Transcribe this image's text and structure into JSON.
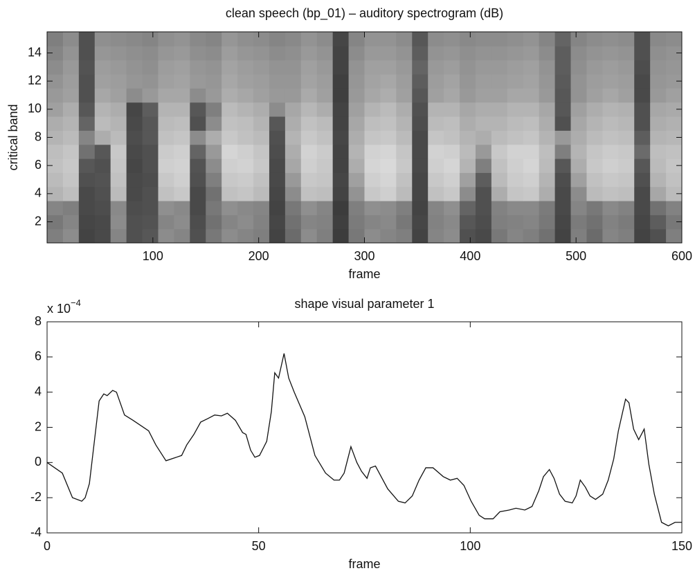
{
  "chart_data": [
    {
      "type": "heatmap",
      "title": "clean speech (bp_01) – auditory spectrogram (dB)",
      "x_label": "frame",
      "y_label": "critical band",
      "x": [
        7.5,
        22.5,
        37.5,
        52.5,
        67.5,
        82.5,
        97.5,
        112.5,
        127.5,
        142.5,
        157.5,
        172.5,
        187.5,
        202.5,
        217.5,
        232.5,
        247.5,
        262.5,
        277.5,
        292.5,
        307.5,
        322.5,
        337.5,
        352.5,
        367.5,
        382.5,
        397.5,
        412.5,
        427.5,
        442.5,
        457.5,
        472.5,
        487.5,
        502.5,
        517.5,
        532.5,
        547.5,
        562.5,
        577.5,
        592.5
      ],
      "y": [
        1,
        2,
        3,
        4,
        5,
        6,
        7,
        8,
        9,
        10,
        11,
        12,
        13,
        14,
        15
      ],
      "z": [
        [
          26,
          30,
          8,
          10,
          28,
          12,
          14,
          30,
          28,
          12,
          24,
          30,
          28,
          26,
          8,
          20,
          30,
          26,
          6,
          24,
          30,
          28,
          26,
          8,
          28,
          30,
          12,
          10,
          24,
          28,
          26,
          22,
          8,
          26,
          20,
          28,
          26,
          8,
          12,
          26
        ],
        [
          24,
          28,
          9,
          10,
          30,
          12,
          13,
          28,
          30,
          11,
          22,
          28,
          30,
          27,
          9,
          22,
          28,
          27,
          7,
          25,
          28,
          29,
          24,
          9,
          27,
          29,
          14,
          11,
          26,
          27,
          28,
          24,
          9,
          25,
          22,
          27,
          25,
          9,
          16,
          24
        ],
        [
          28,
          26,
          10,
          11,
          29,
          11,
          12,
          31,
          29,
          10,
          24,
          31,
          29,
          28,
          8,
          24,
          31,
          28,
          6,
          26,
          31,
          30,
          26,
          8,
          28,
          31,
          18,
          12,
          27,
          29,
          29,
          25,
          10,
          28,
          24,
          29,
          27,
          10,
          22,
          27
        ],
        [
          42,
          45,
          10,
          12,
          44,
          10,
          12,
          46,
          48,
          10,
          22,
          46,
          47,
          44,
          9,
          30,
          46,
          45,
          8,
          32,
          48,
          50,
          44,
          9,
          46,
          48,
          30,
          12,
          40,
          47,
          48,
          40,
          10,
          30,
          44,
          46,
          45,
          10,
          38,
          44
        ],
        [
          44,
          47,
          12,
          13,
          46,
          10,
          11,
          48,
          50,
          12,
          26,
          48,
          49,
          46,
          10,
          34,
          48,
          47,
          9,
          36,
          50,
          52,
          46,
          9,
          48,
          50,
          36,
          16,
          44,
          49,
          50,
          42,
          11,
          36,
          46,
          48,
          47,
          12,
          42,
          46
        ],
        [
          46,
          48,
          14,
          12,
          47,
          9,
          12,
          50,
          51,
          13,
          30,
          50,
          51,
          48,
          10,
          38,
          50,
          48,
          8,
          40,
          52,
          53,
          48,
          10,
          50,
          52,
          42,
          26,
          46,
          50,
          52,
          44,
          14,
          40,
          48,
          50,
          49,
          14,
          44,
          47
        ],
        [
          45,
          47,
          22,
          14,
          48,
          10,
          12,
          49,
          50,
          18,
          34,
          52,
          50,
          47,
          11,
          40,
          51,
          49,
          8,
          42,
          51,
          52,
          47,
          10,
          51,
          50,
          44,
          34,
          48,
          51,
          51,
          45,
          26,
          42,
          47,
          49,
          48,
          20,
          45,
          46
        ],
        [
          42,
          44,
          28,
          40,
          44,
          11,
          14,
          46,
          47,
          30,
          40,
          48,
          46,
          44,
          12,
          42,
          48,
          46,
          9,
          40,
          47,
          48,
          44,
          10,
          47,
          46,
          42,
          40,
          44,
          46,
          47,
          42,
          34,
          40,
          44,
          46,
          45,
          16,
          42,
          43
        ],
        [
          40,
          42,
          18,
          44,
          42,
          10,
          14,
          44,
          45,
          12,
          30,
          46,
          45,
          42,
          14,
          40,
          46,
          44,
          8,
          38,
          45,
          46,
          42,
          11,
          44,
          45,
          40,
          42,
          42,
          44,
          45,
          40,
          12,
          38,
          42,
          44,
          43,
          12,
          40,
          41
        ],
        [
          36,
          40,
          14,
          42,
          40,
          9,
          16,
          42,
          42,
          14,
          26,
          44,
          42,
          40,
          30,
          38,
          43,
          40,
          8,
          36,
          42,
          44,
          40,
          12,
          42,
          42,
          38,
          40,
          40,
          42,
          42,
          38,
          14,
          36,
          40,
          42,
          41,
          12,
          38,
          39
        ],
        [
          34,
          36,
          12,
          38,
          36,
          30,
          34,
          38,
          38,
          30,
          34,
          40,
          38,
          36,
          34,
          34,
          39,
          36,
          7,
          34,
          38,
          40,
          36,
          14,
          36,
          38,
          34,
          36,
          36,
          38,
          38,
          34,
          14,
          32,
          36,
          38,
          36,
          10,
          34,
          36
        ],
        [
          32,
          35,
          12,
          36,
          35,
          33,
          32,
          36,
          37,
          34,
          33,
          38,
          36,
          35,
          33,
          33,
          37,
          35,
          7,
          33,
          37,
          38,
          35,
          16,
          35,
          37,
          33,
          35,
          35,
          36,
          37,
          33,
          15,
          32,
          35,
          36,
          35,
          10,
          33,
          34
        ],
        [
          30,
          34,
          13,
          35,
          34,
          32,
          31,
          35,
          36,
          33,
          32,
          37,
          35,
          34,
          32,
          32,
          36,
          34,
          8,
          32,
          36,
          36,
          34,
          18,
          34,
          35,
          32,
          34,
          34,
          35,
          36,
          32,
          16,
          31,
          34,
          35,
          34,
          11,
          32,
          33
        ],
        [
          28,
          32,
          12,
          33,
          32,
          31,
          30,
          33,
          34,
          31,
          30,
          35,
          33,
          32,
          30,
          31,
          34,
          32,
          8,
          30,
          34,
          34,
          32,
          16,
          32,
          33,
          31,
          32,
          32,
          33,
          34,
          30,
          16,
          30,
          32,
          33,
          32,
          12,
          31,
          32
        ],
        [
          26,
          30,
          12,
          31,
          30,
          29,
          28,
          31,
          32,
          29,
          28,
          33,
          31,
          30,
          28,
          29,
          32,
          30,
          9,
          28,
          32,
          32,
          30,
          14,
          30,
          31,
          29,
          30,
          30,
          31,
          32,
          28,
          18,
          28,
          30,
          31,
          30,
          12,
          29,
          30
        ]
      ],
      "clim": [
        0,
        60
      ],
      "xlim": [
        0,
        600
      ],
      "xticks": [
        100,
        200,
        300,
        400,
        500,
        600
      ],
      "ylim": [
        0.5,
        15.5
      ],
      "yticks": [
        2,
        4,
        6,
        8,
        10,
        12,
        14
      ]
    },
    {
      "type": "line",
      "title": "shape visual parameter 1",
      "x_label": "frame",
      "y_multiplier": {
        "base": "x 10",
        "exponent": "−4"
      },
      "x": [
        0,
        3.6,
        6,
        8.2,
        9,
        10,
        12.3,
        13.4,
        14.2,
        15.5,
        16.4,
        18.3,
        20.3,
        24,
        25.7,
        28.1,
        31.8,
        33,
        34.7,
        36.3,
        38,
        39.6,
        41.2,
        42.6,
        44.5,
        46.2,
        47,
        48.1,
        49.1,
        50.2,
        51.9,
        53,
        53.8,
        54.7,
        56,
        57.1,
        58.4,
        60.9,
        63.3,
        65.8,
        67.8,
        69.1,
        70.2,
        71.8,
        73.2,
        74.3,
        75.6,
        76.4,
        77.6,
        80.5,
        83,
        84.6,
        86.3,
        87.9,
        89.5,
        91.2,
        93.6,
        95.3,
        96.9,
        98.5,
        100.2,
        102.1,
        103.4,
        105.4,
        107,
        109.2,
        110.8,
        112.9,
        114.6,
        116.2,
        117.3,
        118.7,
        119.8,
        121.1,
        122.4,
        124.1,
        125,
        126,
        127.2,
        128.3,
        129.6,
        131.3,
        132.6,
        133.9,
        135,
        136.7,
        137.5,
        138.6,
        139.8,
        141.1,
        142.2,
        143.5,
        145.2,
        146.8,
        148.4,
        150
      ],
      "series": [
        {
          "color": "#111111",
          "values": [
            0,
            -0.6,
            -2,
            -2.2,
            -2,
            -1.2,
            3.5,
            3.9,
            3.8,
            4.1,
            4,
            2.7,
            2.4,
            1.8,
            1,
            0.1,
            0.4,
            1,
            1.6,
            2.3,
            2.5,
            2.7,
            2.65,
            2.8,
            2.4,
            1.7,
            1.6,
            0.7,
            0.3,
            0.4,
            1.2,
            2.9,
            5.1,
            4.8,
            6.2,
            4.8,
            4,
            2.6,
            0.4,
            -0.6,
            -1,
            -1,
            -0.6,
            0.9,
            0,
            -0.5,
            -0.9,
            -0.3,
            -0.2,
            -1.5,
            -2.2,
            -2.3,
            -1.9,
            -1,
            -0.3,
            -0.3,
            -0.8,
            -1,
            -0.9,
            -1.3,
            -2.2,
            -3,
            -3.2,
            -3.2,
            -2.8,
            -2.7,
            -2.6,
            -2.7,
            -2.5,
            -1.6,
            -0.8,
            -0.4,
            -0.9,
            -1.8,
            -2.2,
            -2.3,
            -1.9,
            -1,
            -1.4,
            -1.9,
            -2.1,
            -1.8,
            -1,
            0.2,
            1.8,
            3.6,
            3.4,
            1.9,
            1.3,
            1.9,
            -0.1,
            -1.8,
            -3.4,
            -3.6,
            -3.4,
            -3.4
          ]
        }
      ],
      "xlim": [
        0,
        150
      ],
      "xticks": [
        0,
        50,
        100,
        150
      ],
      "ylim": [
        -4,
        8
      ],
      "yticks": [
        -4,
        -2,
        0,
        2,
        4,
        6,
        8
      ]
    }
  ]
}
